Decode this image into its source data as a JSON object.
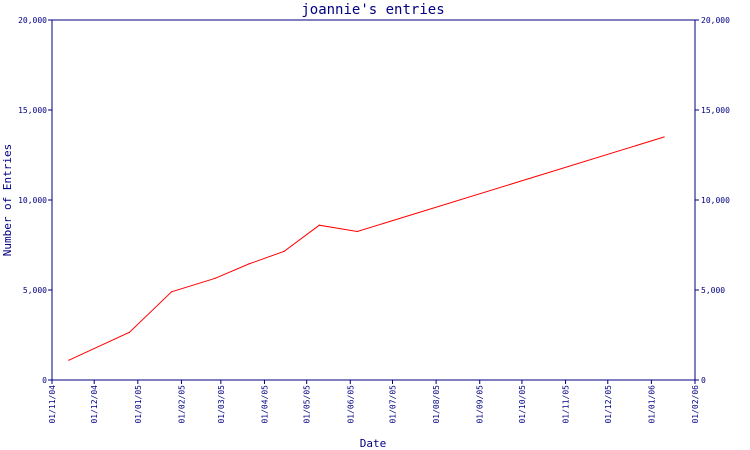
{
  "chart_data": {
    "type": "line",
    "title": "joannie's entries",
    "xlabel": "Date",
    "ylabel": "Number of Entries",
    "ylim": [
      0,
      20000
    ],
    "y_ticks": [
      {
        "value": 0,
        "label": "0"
      },
      {
        "value": 5000,
        "label": "5,000"
      },
      {
        "value": 10000,
        "label": "10,000"
      },
      {
        "value": 15000,
        "label": "15,000"
      },
      {
        "value": 20000,
        "label": "20,000"
      }
    ],
    "xlim": [
      "2004-11-01",
      "2006-02-01"
    ],
    "x_ticks": [
      {
        "value": "2004-11-01",
        "label": "01/11/04"
      },
      {
        "value": "2004-12-01",
        "label": "01/12/04"
      },
      {
        "value": "2005-01-01",
        "label": "01/01/05"
      },
      {
        "value": "2005-02-01",
        "label": "01/02/05"
      },
      {
        "value": "2005-03-01",
        "label": "01/03/05"
      },
      {
        "value": "2005-04-01",
        "label": "01/04/05"
      },
      {
        "value": "2005-05-01",
        "label": "01/05/05"
      },
      {
        "value": "2005-06-01",
        "label": "01/06/05"
      },
      {
        "value": "2005-07-01",
        "label": "01/07/05"
      },
      {
        "value": "2005-08-01",
        "label": "01/08/05"
      },
      {
        "value": "2005-09-01",
        "label": "01/09/05"
      },
      {
        "value": "2005-10-01",
        "label": "01/10/05"
      },
      {
        "value": "2005-11-01",
        "label": "01/11/05"
      },
      {
        "value": "2005-12-01",
        "label": "01/12/05"
      },
      {
        "value": "2006-01-01",
        "label": "01/01/06"
      },
      {
        "value": "2006-02-01",
        "label": "01/02/06"
      }
    ],
    "grid": false,
    "right_axis": true,
    "series": [
      {
        "color": "#ff0000",
        "points": [
          {
            "x": "2004-11-13",
            "y": 1100
          },
          {
            "x": "2004-12-26",
            "y": 2650
          },
          {
            "x": "2005-01-25",
            "y": 4900
          },
          {
            "x": "2005-02-25",
            "y": 5650
          },
          {
            "x": "2005-03-21",
            "y": 6450
          },
          {
            "x": "2005-04-15",
            "y": 7150
          },
          {
            "x": "2005-05-10",
            "y": 8600
          },
          {
            "x": "2005-06-06",
            "y": 8250
          },
          {
            "x": "2006-01-10",
            "y": 13500
          }
        ]
      }
    ]
  }
}
